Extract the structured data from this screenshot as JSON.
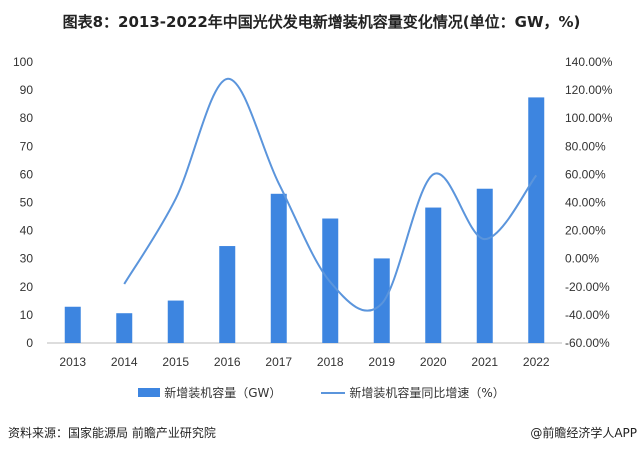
{
  "chart_data": {
    "type": "bar",
    "title": "图表8：2013-2022年中国光伏发电新增装机容量变化情况(单位：GW，%)",
    "categories": [
      "2013",
      "2014",
      "2015",
      "2016",
      "2017",
      "2018",
      "2019",
      "2020",
      "2021",
      "2022"
    ],
    "series": [
      {
        "name": "新增装机容量（GW）",
        "type": "bar",
        "axis": "left",
        "color": "#3d85e0",
        "values": [
          12.9,
          10.6,
          15.1,
          34.5,
          53.1,
          44.3,
          30.1,
          48.2,
          54.9,
          87.4
        ]
      },
      {
        "name": "新增装机容量同比增速（%）",
        "type": "line",
        "smooth": true,
        "axis": "right",
        "color": "#5b95dc",
        "values": [
          null,
          -18.0,
          42.7,
          128.0,
          53.6,
          -16.6,
          -32.0,
          60.0,
          13.9,
          59.3
        ]
      }
    ],
    "ylim_left": [
      0,
      100
    ],
    "yticks_left": [
      "0",
      "10",
      "20",
      "30",
      "40",
      "50",
      "60",
      "70",
      "80",
      "90",
      "100"
    ],
    "ylim_right": [
      -60,
      140
    ],
    "yticks_right": [
      "-60.00%",
      "-40.00%",
      "-20.00%",
      "0.00%",
      "20.00%",
      "40.00%",
      "60.00%",
      "80.00%",
      "100.00%",
      "120.00%",
      "140.00%"
    ],
    "grid": false,
    "legend": "bottom"
  },
  "footer": {
    "source": "资料来源：国家能源局 前瞻产业研究院",
    "credit": "@前瞻经济学人APP"
  }
}
